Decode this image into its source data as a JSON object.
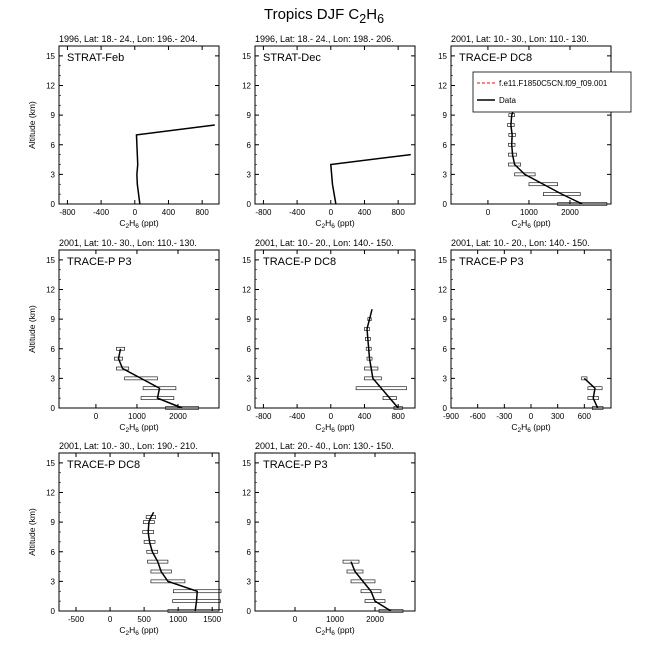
{
  "figure": {
    "title_prefix": "Tropics DJF C",
    "title_sub1": "2",
    "title_mid": "H",
    "title_sub2": "6"
  },
  "axis_text": {
    "ylabel": "Altitude (km)",
    "xlabel_prefix": "C",
    "xlabel_sub1": "2",
    "xlabel_mid": "H",
    "xlabel_sub2": "6",
    "xlabel_suffix": " (ppt)"
  },
  "legend": {
    "model_label": "f.e11.F1850C5CN.f09_f09.001",
    "data_label": "Data",
    "model_color": "#ff0000",
    "data_color": "#000000"
  },
  "chart_data": [
    {
      "type": "line",
      "header": "1996, Lat: 18.- 24., Lon: 196.- 204.",
      "campaign": "STRAT-Feb",
      "xlim": [
        -900,
        1000
      ],
      "xticks": [
        -800,
        -400,
        0,
        400,
        800
      ],
      "ylim": [
        0,
        16
      ],
      "yticks": [
        0,
        3,
        6,
        9,
        12,
        15
      ],
      "series": [
        {
          "x": [
            60,
            45,
            30,
            25,
            35,
            30,
            20,
            950
          ],
          "y": [
            0,
            1,
            2,
            3,
            4,
            5,
            7,
            8
          ],
          "xerr": [
            0,
            0,
            0,
            0,
            0,
            0,
            0,
            0
          ]
        }
      ]
    },
    {
      "type": "line",
      "header": "1996, Lat: 18.- 24., Lon: 198.- 206.",
      "campaign": "STRAT-Dec",
      "xlim": [
        -900,
        1000
      ],
      "xticks": [
        -800,
        -400,
        0,
        400,
        800
      ],
      "ylim": [
        0,
        16
      ],
      "yticks": [
        0,
        3,
        6,
        9,
        12,
        15
      ],
      "series": [
        {
          "x": [
            60,
            40,
            20,
            10,
            0,
            950
          ],
          "y": [
            0,
            1,
            2,
            3,
            4,
            5
          ],
          "xerr": [
            0,
            0,
            0,
            0,
            0,
            0
          ]
        }
      ]
    },
    {
      "type": "line",
      "header": "2001, Lat: 10.- 30., Lon: 110.- 130.",
      "campaign": "TRACE-P DC8",
      "legend": true,
      "xlim": [
        -900,
        3000
      ],
      "xticks": [
        0,
        1000,
        2000
      ],
      "ylim": [
        0,
        16
      ],
      "yticks": [
        0,
        3,
        6,
        9,
        12,
        15
      ],
      "series": [
        {
          "x": [
            2300,
            1800,
            1350,
            900,
            650,
            600,
            580,
            590,
            560,
            580,
            620,
            650
          ],
          "y": [
            0,
            1,
            2,
            3,
            4,
            5,
            6,
            7,
            8,
            9,
            9.5,
            10
          ],
          "xerr": [
            600,
            450,
            350,
            250,
            150,
            100,
            80,
            80,
            80,
            70,
            60,
            0
          ]
        }
      ]
    },
    {
      "type": "line",
      "header": "2001, Lat: 10.- 30., Lon: 110.- 130.",
      "campaign": "TRACE-P P3",
      "xlim": [
        -900,
        3000
      ],
      "xticks": [
        0,
        1000,
        2000
      ],
      "ylim": [
        0,
        16
      ],
      "yticks": [
        0,
        3,
        6,
        9,
        12,
        15
      ],
      "series": [
        {
          "x": [
            2100,
            1500,
            1550,
            1100,
            650,
            550,
            600
          ],
          "y": [
            0,
            1,
            2,
            3,
            4,
            5,
            6
          ],
          "xerr": [
            400,
            400,
            400,
            400,
            150,
            100,
            100
          ]
        }
      ]
    },
    {
      "type": "line",
      "header": "2001, Lat: 10.- 20., Lon: 140.- 150.",
      "campaign": "TRACE-P DC8",
      "xlim": [
        -900,
        1000
      ],
      "xticks": [
        -800,
        -400,
        0,
        400,
        800
      ],
      "ylim": [
        0,
        16
      ],
      "yticks": [
        0,
        3,
        6,
        9,
        12,
        15
      ],
      "series": [
        {
          "x": [
            800,
            700,
            600,
            500,
            480,
            460,
            450,
            440,
            430,
            460,
            490
          ],
          "y": [
            0,
            1,
            2,
            3,
            4,
            5,
            6,
            7,
            8,
            9,
            10
          ],
          "xerr": [
            50,
            80,
            300,
            100,
            80,
            30,
            30,
            30,
            30,
            20,
            0
          ]
        }
      ]
    },
    {
      "type": "line",
      "header": "2001, Lat: 10.- 20., Lon: 140.- 150.",
      "campaign": "TRACE-P P3",
      "xlim": [
        -900,
        900
      ],
      "xticks": [
        -900,
        -600,
        -300,
        0,
        300,
        600
      ],
      "ylim": [
        0,
        16
      ],
      "yticks": [
        0,
        3,
        6,
        9,
        12,
        15
      ],
      "series": [
        {
          "x": [
            750,
            700,
            720,
            600
          ],
          "y": [
            0,
            1,
            2,
            3
          ],
          "xerr": [
            60,
            60,
            80,
            30
          ]
        }
      ]
    },
    {
      "type": "line",
      "header": "2001, Lat: 10.- 30., Lon: 190.- 210.",
      "campaign": "TRACE-P DC8",
      "xlim": [
        -750,
        1600
      ],
      "xticks": [
        -500,
        0,
        500,
        1000,
        1500
      ],
      "ylim": [
        0,
        16
      ],
      "yticks": [
        0,
        3,
        6,
        9,
        12,
        15
      ],
      "series": [
        {
          "x": [
            1250,
            1270,
            1280,
            850,
            750,
            700,
            620,
            580,
            560,
            570,
            600,
            640
          ],
          "y": [
            0,
            1,
            2,
            3,
            4,
            5,
            6,
            7,
            8,
            9,
            9.5,
            10
          ],
          "xerr": [
            400,
            350,
            350,
            250,
            150,
            150,
            80,
            80,
            80,
            80,
            70,
            0
          ]
        }
      ]
    },
    {
      "type": "line",
      "header": "2001, Lat: 20.- 40., Lon: 130.- 150.",
      "campaign": "TRACE-P P3",
      "xlim": [
        -1000,
        3000
      ],
      "xticks": [
        0,
        1000,
        2000
      ],
      "ylim": [
        0,
        16
      ],
      "yticks": [
        0,
        3,
        6,
        9,
        12,
        15
      ],
      "series": [
        {
          "x": [
            2400,
            2000,
            1900,
            1700,
            1500,
            1400
          ],
          "y": [
            0,
            1,
            2,
            3,
            4,
            5
          ],
          "xerr": [
            300,
            250,
            250,
            300,
            200,
            200
          ]
        }
      ]
    }
  ]
}
